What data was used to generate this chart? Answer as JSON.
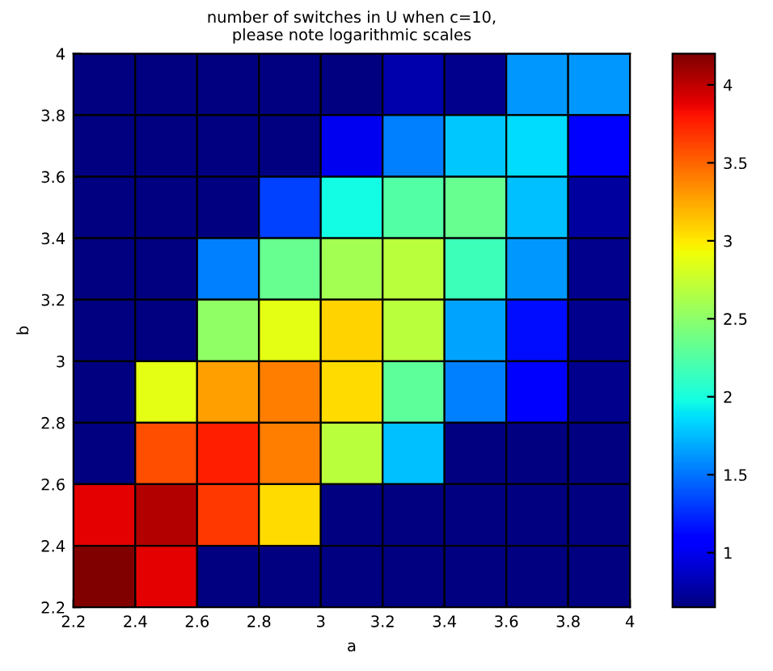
{
  "chart_data": {
    "type": "heatmap",
    "title": "number of switches in U when c=10,\nplease note logarithmic scales",
    "xlabel": "a",
    "ylabel": "b",
    "x": [
      2.3,
      2.5,
      2.7,
      2.9,
      3.1,
      3.3,
      3.5,
      3.7,
      3.9
    ],
    "y": [
      3.9,
      3.7,
      3.5,
      3.3,
      3.1,
      2.9,
      2.7,
      2.5,
      2.3
    ],
    "cells": [
      [
        0.65,
        0.65,
        0.65,
        0.65,
        0.65,
        0.8,
        0.7,
        1.63,
        1.63
      ],
      [
        0.65,
        0.65,
        0.65,
        0.65,
        1.0,
        1.54,
        1.8,
        1.87,
        1.05
      ],
      [
        0.65,
        0.65,
        0.65,
        1.32,
        1.98,
        2.25,
        2.34,
        1.76,
        0.75
      ],
      [
        0.65,
        0.65,
        1.54,
        2.34,
        2.6,
        2.69,
        2.16,
        1.63,
        0.7
      ],
      [
        0.65,
        0.65,
        2.51,
        2.87,
        3.09,
        2.69,
        1.67,
        1.14,
        0.7
      ],
      [
        0.65,
        2.87,
        3.28,
        3.4,
        3.05,
        2.29,
        1.54,
        1.1,
        0.7
      ],
      [
        0.65,
        3.58,
        3.76,
        3.4,
        2.69,
        1.76,
        0.65,
        0.65,
        0.65
      ],
      [
        3.89,
        4.04,
        3.67,
        3.05,
        0.65,
        0.65,
        0.65,
        0.65,
        0.65
      ],
      [
        4.2,
        3.89,
        0.65,
        0.65,
        0.65,
        0.65,
        0.65,
        0.65,
        0.65
      ]
    ],
    "xlim": [
      2.2,
      4
    ],
    "ylim": [
      2.2,
      4
    ],
    "xticks": [
      2.2,
      2.4,
      2.6,
      2.8,
      3,
      3.2,
      3.4,
      3.6,
      3.8,
      4
    ],
    "yticks": [
      2.2,
      2.4,
      2.6,
      2.8,
      3,
      3.2,
      3.4,
      3.6,
      3.8,
      4
    ],
    "clim": [
      0.65,
      4.2
    ],
    "cticks": [
      1,
      1.5,
      2,
      2.5,
      3,
      3.5,
      4
    ]
  }
}
